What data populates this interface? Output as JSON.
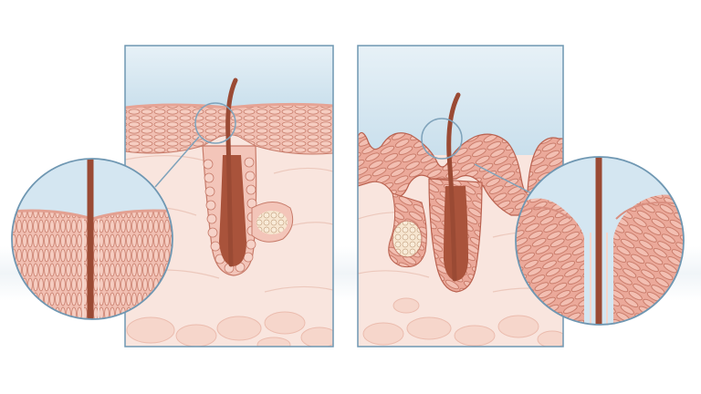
{
  "figure": {
    "panels": [
      {
        "id": "left",
        "skin": "smooth"
      },
      {
        "id": "right",
        "skin": "thickened-folded"
      }
    ],
    "colors": {
      "sky": "#cfe3ef",
      "frame": "#6f97b2",
      "dermis": "#f8e3dc",
      "epidermis": "#efb8ab",
      "cell_line": "#c77b6a",
      "hair": "#9a4a34",
      "follicle": "#a9533b",
      "gland": "#f4dfc6",
      "fat": "#f6d7cc"
    }
  }
}
